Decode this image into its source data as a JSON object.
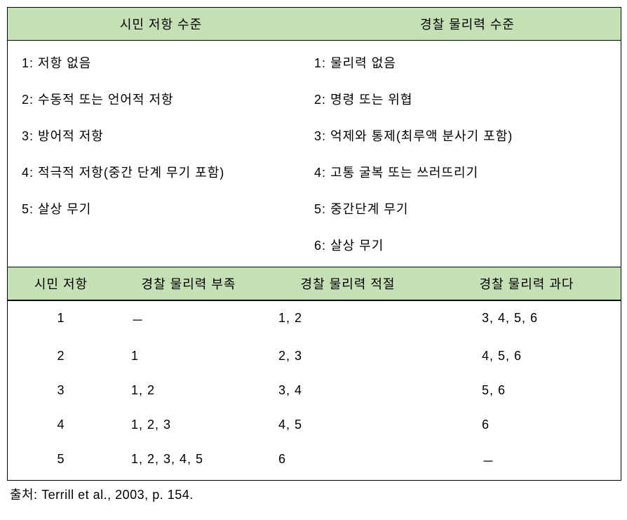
{
  "colors": {
    "header_bg": "#c5e0b4",
    "border": "#000000",
    "text": "#000000",
    "page_bg": "#ffffff"
  },
  "topHeaders": {
    "left": "시민 저항 수준",
    "right": "경찰 물리력 수준"
  },
  "citizenLevels": [
    "1: 저항 없음",
    "2: 수동적 또는 언어적 저항",
    "3: 방어적 저항",
    "4: 적극적 저항(중간 단계 무기 포함)",
    "5: 살상 무기"
  ],
  "policeLevels": [
    "1: 물리력 없음",
    "2: 명령 또는 위협",
    "3: 억제와 통제(최루액 분사기 포함)",
    "4: 고통 굴복 또는 쓰러뜨리기",
    "5: 중간단계 무기",
    "6: 살상 무기"
  ],
  "matrixHeaders": {
    "c1": "시민 저항",
    "c2": "경찰 물리력 부족",
    "c3": "경찰 물리력 적절",
    "c4": "경찰 물리력 과다"
  },
  "matrixRows": [
    {
      "c1": "1",
      "c2": "－",
      "c3": "1, 2",
      "c4": "3, 4, 5, 6"
    },
    {
      "c1": "2",
      "c2": "1",
      "c3": "2, 3",
      "c4": "4, 5, 6"
    },
    {
      "c1": "3",
      "c2": "1, 2",
      "c3": "3, 4",
      "c4": "5, 6"
    },
    {
      "c1": "4",
      "c2": "1, 2, 3",
      "c3": "4, 5",
      "c4": "6"
    },
    {
      "c1": "5",
      "c2": "1, 2, 3, 4, 5",
      "c3": "6",
      "c4": "－"
    }
  ],
  "source": "출처: Terrill et al., 2003, p. 154."
}
